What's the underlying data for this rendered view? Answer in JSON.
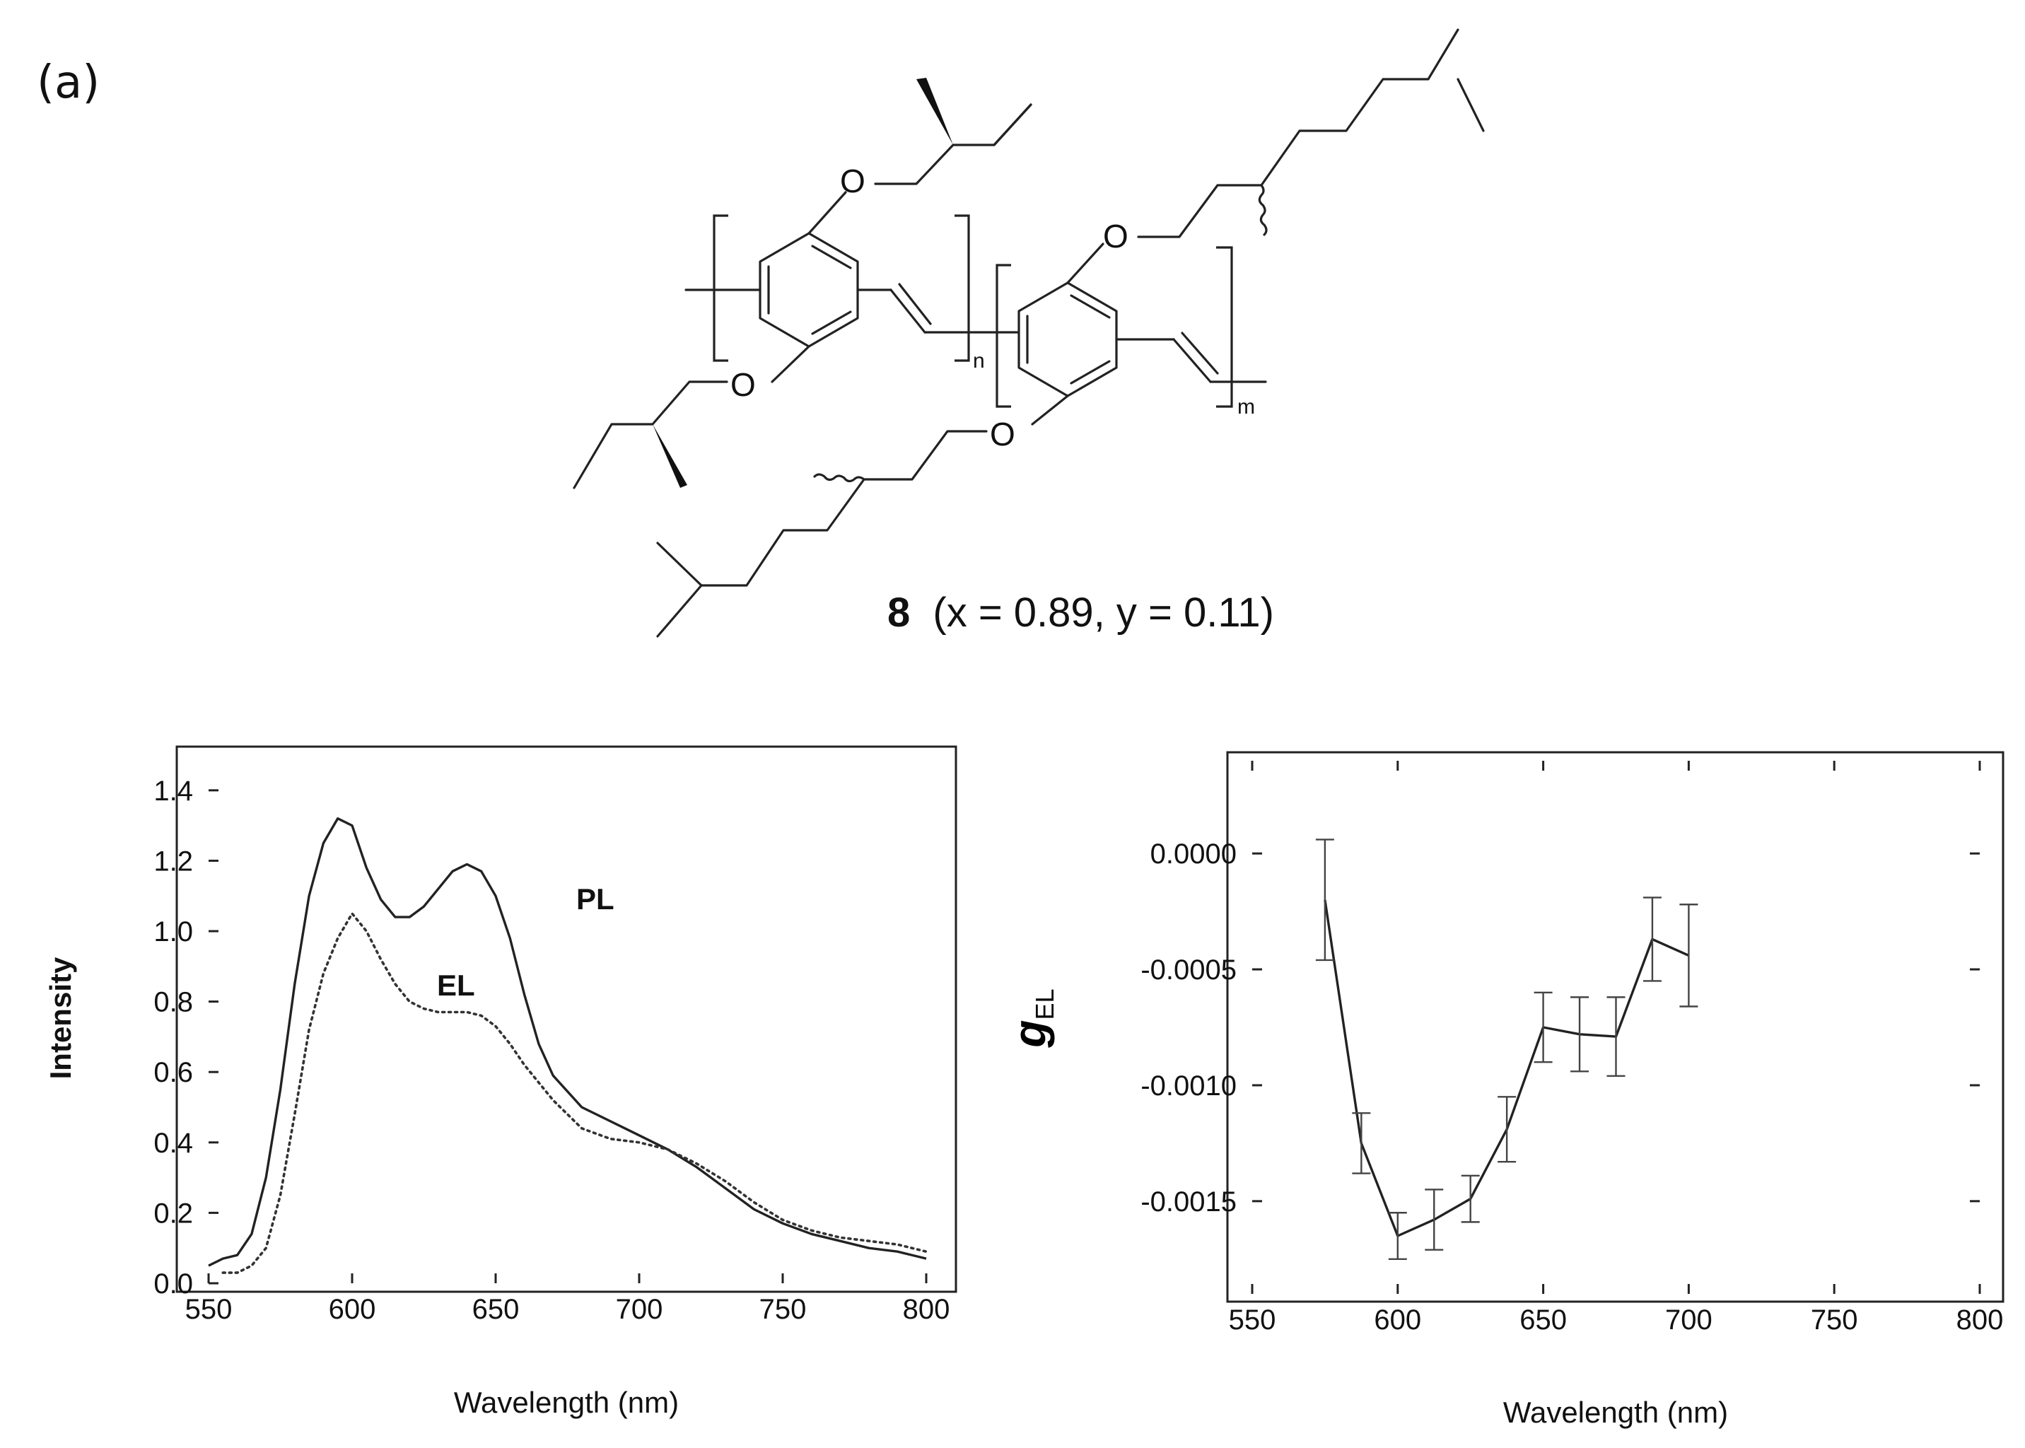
{
  "panel_label": "(a)",
  "structure": {
    "atom_O": "O",
    "repeat_n": "n",
    "repeat_m": "m",
    "compound_number": "8",
    "composition": "(x = 0.89, y = 0.11)"
  },
  "chart_data": [
    {
      "type": "line",
      "title": "",
      "xlabel": "Wavelength (nm)",
      "ylabel": "Intensity",
      "xlim": [
        550,
        800
      ],
      "ylim": [
        0.0,
        1.5
      ],
      "x_ticks": [
        550,
        600,
        650,
        700,
        750,
        800
      ],
      "y_ticks": [
        0.0,
        0.2,
        0.4,
        0.6,
        0.8,
        1.0,
        1.2,
        1.4
      ],
      "grid": false,
      "series": [
        {
          "name": "PL",
          "style": "solid",
          "color": "#222222",
          "x": [
            550,
            555,
            560,
            565,
            570,
            575,
            580,
            585,
            590,
            595,
            600,
            605,
            610,
            615,
            620,
            625,
            630,
            635,
            640,
            645,
            650,
            655,
            660,
            665,
            670,
            680,
            690,
            700,
            710,
            720,
            730,
            740,
            750,
            760,
            770,
            780,
            790,
            800
          ],
          "y": [
            0.05,
            0.07,
            0.08,
            0.14,
            0.3,
            0.55,
            0.85,
            1.1,
            1.25,
            1.32,
            1.3,
            1.18,
            1.09,
            1.04,
            1.04,
            1.07,
            1.12,
            1.17,
            1.19,
            1.17,
            1.1,
            0.98,
            0.82,
            0.68,
            0.59,
            0.5,
            0.46,
            0.42,
            0.38,
            0.33,
            0.27,
            0.21,
            0.17,
            0.14,
            0.12,
            0.1,
            0.09,
            0.07
          ]
        },
        {
          "name": "EL",
          "style": "dotted",
          "color": "#333333",
          "x": [
            555,
            560,
            565,
            570,
            575,
            580,
            585,
            590,
            595,
            600,
            605,
            610,
            615,
            620,
            625,
            630,
            635,
            640,
            645,
            650,
            655,
            660,
            665,
            670,
            680,
            690,
            700,
            710,
            720,
            730,
            740,
            750,
            760,
            770,
            780,
            790,
            800
          ],
          "y": [
            0.03,
            0.03,
            0.05,
            0.1,
            0.25,
            0.48,
            0.72,
            0.88,
            0.98,
            1.05,
            1.0,
            0.92,
            0.85,
            0.8,
            0.78,
            0.77,
            0.77,
            0.77,
            0.76,
            0.73,
            0.68,
            0.62,
            0.57,
            0.52,
            0.44,
            0.41,
            0.4,
            0.38,
            0.34,
            0.29,
            0.23,
            0.18,
            0.15,
            0.13,
            0.12,
            0.11,
            0.09
          ]
        }
      ]
    },
    {
      "type": "line",
      "title": "",
      "xlabel": "Wavelength (nm)",
      "ylabel": "gEL",
      "ylabel_main": "g",
      "ylabel_sub": "EL",
      "xlim": [
        550,
        800
      ],
      "ylim": [
        -0.0019,
        0.0004
      ],
      "x_ticks": [
        550,
        600,
        650,
        700,
        750,
        800
      ],
      "y_ticks": [
        0.0,
        -0.0005,
        -0.001,
        -0.0015
      ],
      "y_tick_labels": [
        "0.0000",
        "-0.0005",
        "-0.0010",
        "-0.0015"
      ],
      "grid": false,
      "error_bars": true,
      "series": [
        {
          "name": "",
          "style": "solid",
          "color": "#222222",
          "x": [
            575,
            587.5,
            600,
            612.5,
            625,
            637.5,
            650,
            662.5,
            675,
            687.5,
            700
          ],
          "y": [
            -0.0002,
            -0.00125,
            -0.00165,
            -0.00158,
            -0.00149,
            -0.00119,
            -0.00075,
            -0.00078,
            -0.00079,
            -0.00037,
            -0.00044
          ],
          "error": [
            0.00026,
            0.00013,
            0.0001,
            0.00013,
            0.0001,
            0.00014,
            0.00015,
            0.00016,
            0.00017,
            0.00018,
            0.00022
          ]
        }
      ]
    }
  ]
}
